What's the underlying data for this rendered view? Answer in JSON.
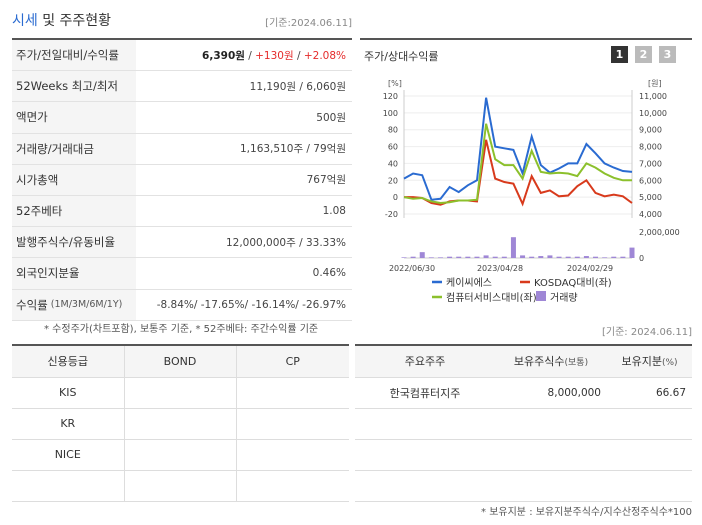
{
  "header": {
    "title_blue": "시세",
    "title_rest": " 및 주주현황",
    "asof": "[기준:2024.06.11]"
  },
  "stats": [
    {
      "label": "주가/전일대비/수익률",
      "price": "6,390원",
      "sep1": " / ",
      "change": "+130원",
      "sep2": " / ",
      "pct": "+2.08%"
    },
    {
      "label": "52Weeks 최고/최저",
      "value": "11,190원 / 6,060원"
    },
    {
      "label": "액면가",
      "value": "500원"
    },
    {
      "label": "거래량/거래대금",
      "value": "1,163,510주 / 79억원"
    },
    {
      "label": "시가총액",
      "value": "767억원"
    },
    {
      "label": "52주베타",
      "value": "1.08"
    },
    {
      "label": "발행주식수/유동비율",
      "value": "12,000,000주 / 33.33%"
    },
    {
      "label": "외국인지분율",
      "value": "0.46%"
    },
    {
      "label": "수익률",
      "sub": "(1M/3M/6M/1Y)",
      "value": "-8.84%/ -17.65%/ -16.14%/ -26.97%"
    }
  ],
  "note1": "* 수정주가(차트포함), 보통주 기준, * 52주베타: 주간수익률 기준",
  "chart_panel": {
    "title": "주가/상대수익률",
    "pages": [
      "1",
      "2",
      "3"
    ]
  },
  "chart_data": {
    "type": "line",
    "left_unit": "[%]",
    "right_unit": "[원]",
    "left_ticks": [
      "120",
      "100",
      "80",
      "60",
      "40",
      "20",
      "0",
      "-20"
    ],
    "right_ticks": [
      "11,000",
      "10,000",
      "9,000",
      "8,000",
      "7,000",
      "6,000",
      "5,000",
      "4,000"
    ],
    "volume_ticks": [
      "2,000,000",
      "0"
    ],
    "x_ticks": [
      "2022/06/30",
      "2023/04/28",
      "2024/02/29"
    ],
    "x": [
      0,
      1,
      2,
      3,
      4,
      5,
      6,
      7,
      8,
      9,
      10,
      11,
      12,
      13,
      14,
      15,
      16,
      17,
      18,
      19,
      20,
      21,
      22,
      23,
      24,
      25
    ],
    "series": [
      {
        "name": "케이씨에스",
        "color": "#2a6bd1",
        "values": [
          22,
          28,
          26,
          -3,
          -2,
          12,
          6,
          14,
          20,
          118,
          60,
          58,
          56,
          28,
          72,
          38,
          29,
          34,
          40,
          40,
          63,
          52,
          40,
          35,
          31,
          30
        ]
      },
      {
        "name": "KOSDAQ대비(좌)",
        "color": "#d83a1c",
        "values": [
          0,
          0,
          -1,
          -7,
          -9,
          -5,
          -4,
          -4,
          -5,
          68,
          22,
          18,
          16,
          -8,
          25,
          5,
          8,
          1,
          2,
          13,
          20,
          5,
          1,
          3,
          1,
          -7
        ]
      },
      {
        "name": "컴퓨터서비스대비(좌)",
        "color": "#8cc02c",
        "values": [
          0,
          -2,
          -1,
          -5,
          -7,
          -6,
          -4,
          -4,
          -3,
          87,
          45,
          38,
          38,
          22,
          55,
          30,
          28,
          29,
          28,
          25,
          40,
          35,
          28,
          23,
          20,
          20
        ]
      }
    ],
    "volume": {
      "name": "거래량",
      "color": "#9f87d6",
      "values": [
        0.05,
        0.1,
        0.45,
        0.05,
        0.05,
        0.1,
        0.1,
        0.1,
        0.1,
        0.2,
        0.1,
        0.1,
        1.6,
        0.2,
        0.1,
        0.15,
        0.2,
        0.1,
        0.1,
        0.1,
        0.15,
        0.1,
        0.05,
        0.1,
        0.1,
        0.8
      ]
    }
  },
  "asof2": "[기준: 2024.06.11]",
  "credit": {
    "headers": [
      "신용등급",
      "BOND",
      "CP"
    ],
    "rows": [
      [
        "KIS",
        "",
        ""
      ],
      [
        "KR",
        "",
        ""
      ],
      [
        "NICE",
        "",
        ""
      ],
      [
        "",
        "",
        ""
      ]
    ]
  },
  "holders": {
    "headers": [
      "주요주주",
      "보유주식수",
      "(보통)",
      "보유지분",
      "(%)"
    ],
    "rows": [
      [
        "한국컴퓨터지주",
        "8,000,000",
        "66.67"
      ],
      [
        "",
        "",
        ""
      ],
      [
        "",
        "",
        ""
      ],
      [
        "",
        "",
        ""
      ]
    ]
  },
  "note2": "* 보유지분 : 보유지분주식수/지수산정주식수*100"
}
